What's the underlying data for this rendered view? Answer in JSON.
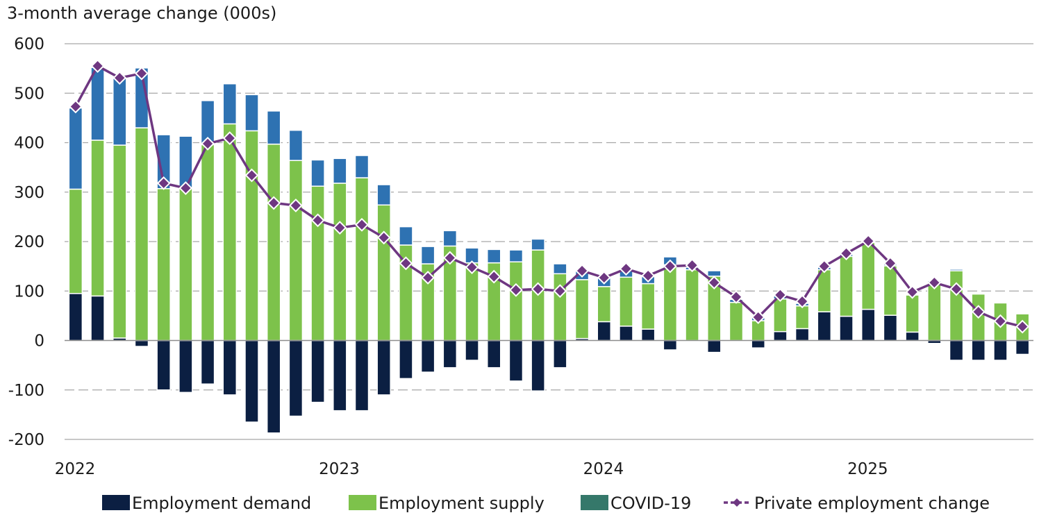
{
  "chart_data": {
    "type": "bar",
    "stacked": true,
    "title": "",
    "ylabel": "3-month average change (000s)",
    "xlabel": "",
    "ylim": [
      -200,
      600
    ],
    "yticks": [
      600,
      500,
      400,
      300,
      200,
      100,
      0,
      -100,
      -200
    ],
    "ytick_labels": [
      "600",
      "500",
      "400",
      "300",
      "200",
      "100",
      "0",
      "-100",
      "-200"
    ],
    "xtick_labels": [
      {
        "label": "2022",
        "index": 0
      },
      {
        "label": "2023",
        "index": 12
      },
      {
        "label": "2024",
        "index": 24
      },
      {
        "label": "2025",
        "index": 36
      }
    ],
    "grid": true,
    "legend_position": "bottom",
    "categories": [
      "Jan 2022",
      "Feb 2022",
      "Mar 2022",
      "Apr 2022",
      "May 2022",
      "Jun 2022",
      "Jul 2022",
      "Aug 2022",
      "Sep 2022",
      "Oct 2022",
      "Nov 2022",
      "Dec 2022",
      "Jan 2023",
      "Feb 2023",
      "Mar 2023",
      "Apr 2023",
      "May 2023",
      "Jun 2023",
      "Jul 2023",
      "Aug 2023",
      "Sep 2023",
      "Oct 2023",
      "Nov 2023",
      "Dec 2023",
      "Jan 2024",
      "Feb 2024",
      "Mar 2024",
      "Apr 2024",
      "May 2024",
      "Jun 2024",
      "Jul 2024",
      "Aug 2024",
      "Sep 2024",
      "Oct 2024",
      "Nov 2024",
      "Dec 2024",
      "Jan 2025",
      "Feb 2025",
      "Mar 2025",
      "Apr 2025",
      "May 2025",
      "Jun 2025",
      "Jul 2025",
      "Aug 2025"
    ],
    "series": [
      {
        "name": "Employment demand",
        "type": "bar",
        "color": "#0b1f42",
        "values": [
          95,
          90,
          5,
          -12,
          -100,
          -105,
          -88,
          -110,
          -165,
          -187,
          -153,
          -125,
          -142,
          -142,
          -110,
          -77,
          -64,
          -55,
          -40,
          -55,
          -82,
          -102,
          -55,
          4,
          38,
          29,
          23,
          -19,
          0,
          -24,
          0,
          -15,
          18,
          24,
          58,
          49,
          63,
          51,
          17,
          -6,
          -40,
          -40,
          -40,
          -28
        ]
      },
      {
        "name": "Employment supply",
        "type": "bar",
        "color": "#7dc24b",
        "values": [
          211,
          315,
          390,
          430,
          307,
          309,
          396,
          438,
          424,
          397,
          364,
          312,
          318,
          329,
          274,
          193,
          155,
          191,
          157,
          157,
          159,
          183,
          135,
          119,
          71,
          99,
          92,
          153,
          143,
          130,
          77,
          40,
          66,
          46,
          85,
          121,
          135,
          100,
          75,
          118,
          141,
          94,
          76,
          54
        ]
      },
      {
        "name": "COVID-19",
        "type": "bar",
        "color": "#2e72b2",
        "legend_color": "#35786a",
        "values": [
          164,
          147,
          135,
          121,
          109,
          104,
          89,
          81,
          73,
          67,
          61,
          53,
          50,
          45,
          41,
          37,
          35,
          31,
          30,
          27,
          24,
          22,
          20,
          18,
          17,
          14,
          14,
          16,
          5,
          11,
          6,
          8,
          6,
          5,
          5,
          4,
          2,
          3,
          2,
          3,
          3,
          2,
          2,
          2
        ]
      },
      {
        "name": "Private employment change",
        "type": "line",
        "color": "#6e3781",
        "marker": "diamond",
        "values": [
          473,
          555,
          531,
          540,
          318,
          308,
          398,
          409,
          334,
          278,
          273,
          243,
          228,
          234,
          208,
          156,
          127,
          167,
          148,
          129,
          102,
          104,
          100,
          141,
          127,
          145,
          131,
          150,
          152,
          117,
          88,
          47,
          92,
          79,
          150,
          176,
          201,
          156,
          98,
          117,
          104,
          58,
          39,
          28
        ]
      }
    ]
  }
}
